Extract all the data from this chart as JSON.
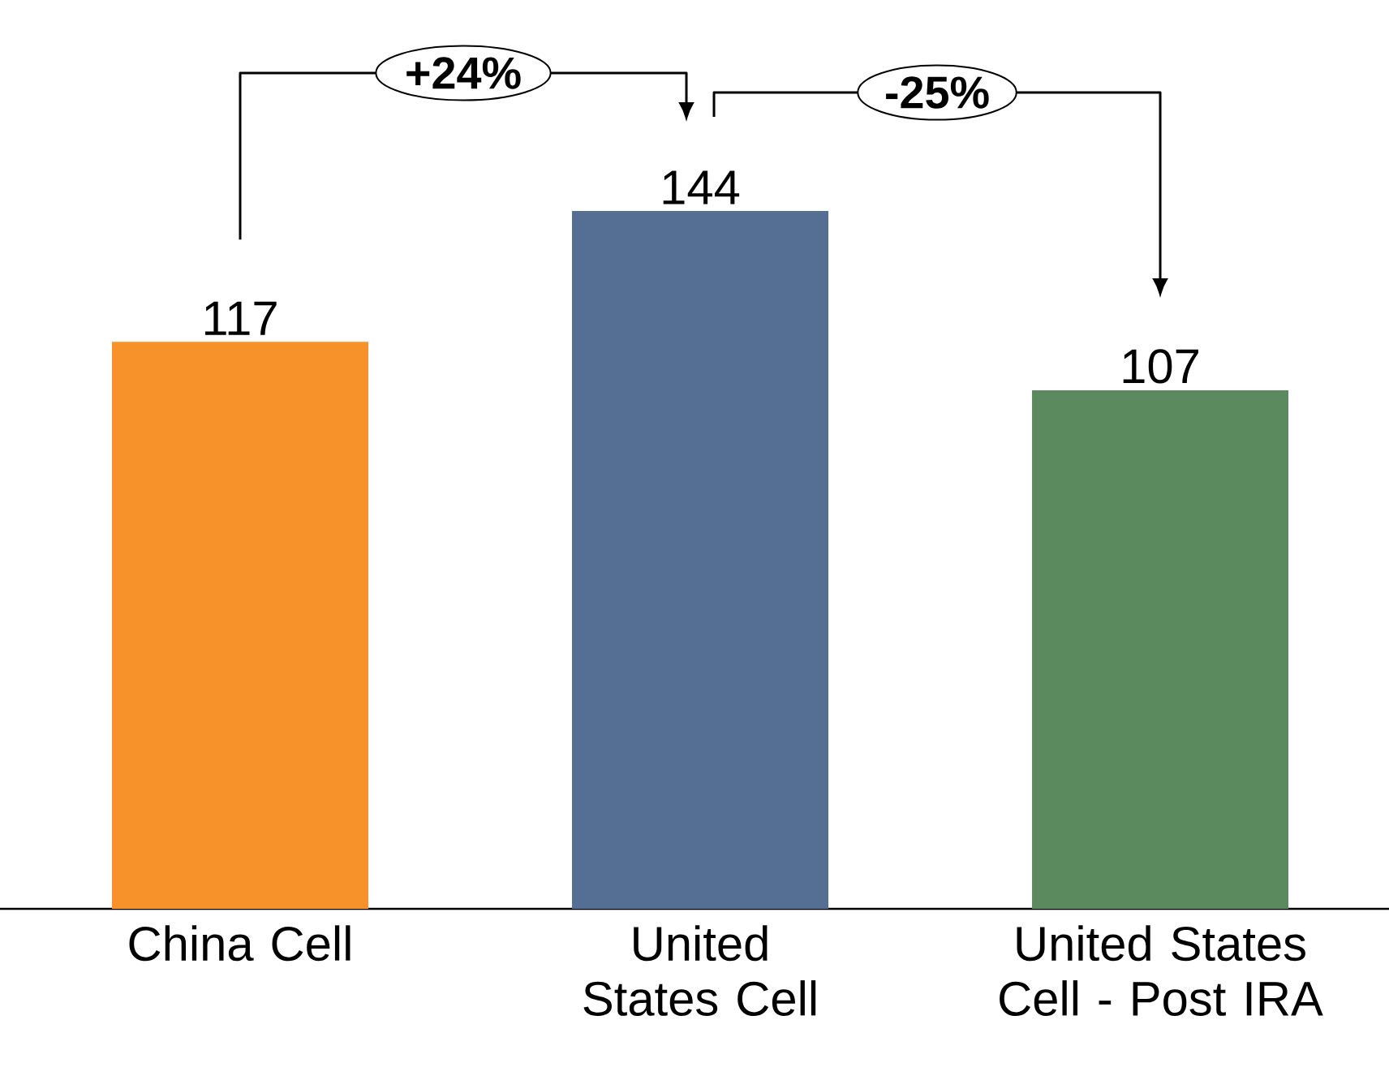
{
  "chart_data": {
    "type": "bar",
    "categories": [
      "China Cell",
      "United States Cell",
      "United States Cell - Post IRA"
    ],
    "values": [
      117,
      144,
      107
    ],
    "colors": [
      "#f7922a",
      "#556f94",
      "#5a8a5e"
    ],
    "data_labels": true,
    "annotations": [
      "+24%",
      "-25%"
    ]
  }
}
